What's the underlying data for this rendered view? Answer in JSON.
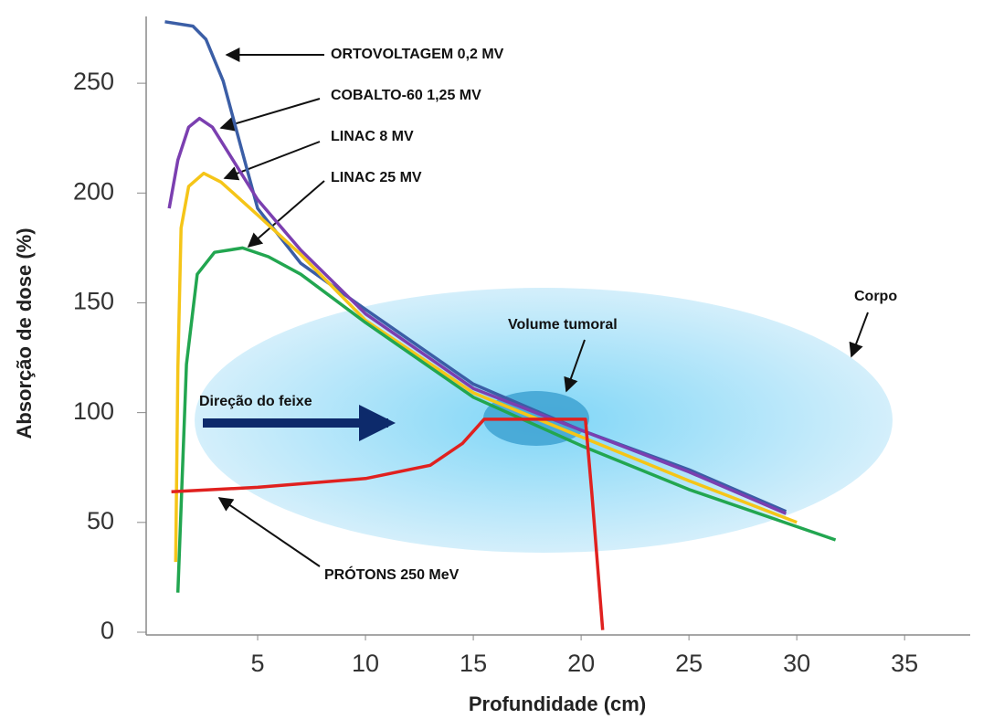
{
  "chart_data": {
    "type": "line",
    "xlabel": "Profundidade (cm)",
    "ylabel": "Absorção de dose (%)",
    "xlim": [
      0,
      38
    ],
    "ylim": [
      0,
      280
    ],
    "xticks": [
      5,
      10,
      15,
      20,
      25,
      30,
      35
    ],
    "yticks": [
      0,
      50,
      100,
      150,
      200,
      250
    ],
    "grid": false,
    "annotations": [
      "Corpo",
      "Volume tumoral",
      "Direção do feixe"
    ],
    "series": [
      {
        "name": "ORTOVOLTAGEM 0,2 MV",
        "color": "#3b5ea6",
        "x": [
          0.7,
          2,
          2.6,
          3.4,
          4.2,
          5,
          7,
          10,
          15,
          20,
          25,
          29.5
        ],
        "values": [
          278,
          276,
          270,
          251,
          222,
          193,
          168,
          147,
          113,
          92,
          74,
          55
        ]
      },
      {
        "name": "COBALTO-60 1,25 MV",
        "color": "#7b3fb0",
        "x": [
          0.9,
          1.3,
          1.8,
          2.3,
          2.9,
          3.6,
          5,
          7,
          10,
          15,
          20,
          25,
          29.5
        ],
        "values": [
          193,
          215,
          230,
          234,
          230,
          219,
          197,
          174,
          145,
          111,
          92,
          73,
          54
        ]
      },
      {
        "name": "LINAC 8 MV",
        "color": "#f5c518",
        "x": [
          1.2,
          1.3,
          1.45,
          1.8,
          2.5,
          3.3,
          5,
          7,
          10,
          15,
          20,
          25,
          30
        ],
        "values": [
          32,
          120,
          184,
          203,
          209,
          205,
          190,
          172,
          142,
          109,
          89,
          69,
          50
        ]
      },
      {
        "name": "LINAC 25 MV",
        "color": "#22a650",
        "x": [
          1.3,
          1.5,
          1.7,
          2.2,
          3,
          4.3,
          5.5,
          7,
          10,
          15,
          20,
          25,
          31.8
        ],
        "values": [
          18,
          70,
          122,
          163,
          173,
          175,
          171,
          163,
          141,
          107,
          85,
          65,
          42
        ]
      },
      {
        "name": "PRÓTONS 250 MeV",
        "color": "#e0211f",
        "x": [
          1,
          5,
          10,
          13,
          14.5,
          15.5,
          20.2,
          20.5,
          21
        ],
        "values": [
          64,
          66,
          70,
          76,
          86,
          97,
          97,
          63,
          1
        ]
      }
    ]
  }
}
